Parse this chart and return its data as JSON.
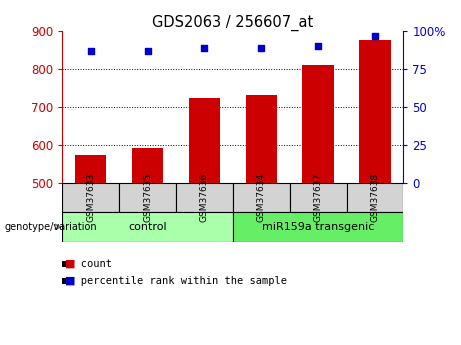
{
  "title": "GDS2063 / 256607_at",
  "samples": [
    "GSM37633",
    "GSM37635",
    "GSM37636",
    "GSM37634",
    "GSM37637",
    "GSM37638"
  ],
  "bar_values": [
    575,
    593,
    724,
    733,
    810,
    877
  ],
  "percentile_values": [
    87,
    87,
    89,
    89,
    90,
    97
  ],
  "bar_color": "#cc0000",
  "dot_color": "#0000cc",
  "ylim_left": [
    500,
    900
  ],
  "ylim_right": [
    0,
    100
  ],
  "yticks_left": [
    500,
    600,
    700,
    800,
    900
  ],
  "yticks_right": [
    0,
    25,
    50,
    75,
    100
  ],
  "yticklabels_right": [
    "0",
    "25",
    "50",
    "75",
    "100%"
  ],
  "groups": [
    {
      "label": "control",
      "indices": [
        0,
        1,
        2
      ],
      "color": "#aaffaa"
    },
    {
      "label": "miR159a transgenic",
      "indices": [
        3,
        4,
        5
      ],
      "color": "#66ee66"
    }
  ],
  "genotype_label": "genotype/variation",
  "legend_items": [
    {
      "label": "count",
      "color": "#cc0000"
    },
    {
      "label": "percentile rank within the sample",
      "color": "#0000cc"
    }
  ],
  "background_color": "#ffffff",
  "grid_color": "#000000",
  "bar_width": 0.55,
  "left_tick_color": "#cc0000",
  "right_tick_color": "#0000cc",
  "sample_box_color": "#d3d3d3"
}
